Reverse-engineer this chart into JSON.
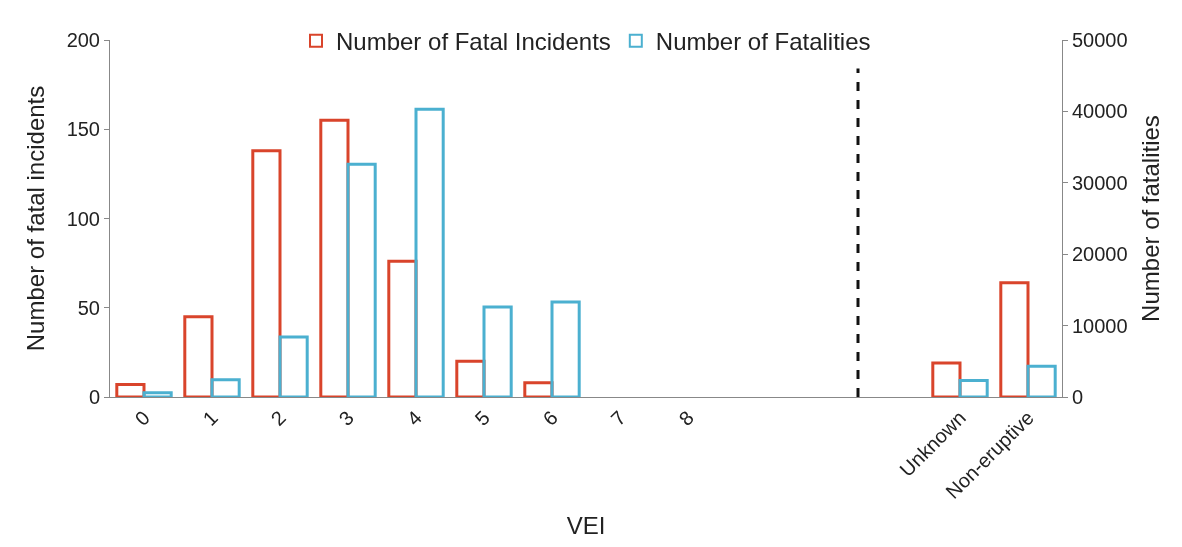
{
  "chart_data": {
    "type": "bar",
    "categories": [
      "0",
      "1",
      "2",
      "3",
      "4",
      "5",
      "6",
      "7",
      "8",
      null,
      null,
      null,
      "Unknown",
      "Non-eruptive"
    ],
    "series": [
      {
        "name": "Number of Fatal Incidents",
        "color": "#d9442b",
        "values": [
          7,
          45,
          138,
          155,
          76,
          20,
          8,
          null,
          null,
          null,
          null,
          null,
          19,
          64
        ]
      },
      {
        "name": "Number of Fatalities",
        "color": "#4bb0d0",
        "axis": "y2",
        "values": [
          600,
          2400,
          8400,
          32600,
          40300,
          12600,
          13300,
          null,
          null,
          null,
          null,
          null,
          2300,
          4300
        ]
      }
    ],
    "xlabel": "VEI",
    "ylabel": "Number of fatal incidents",
    "y2label": "Number of fatalities",
    "ylim": [
      0,
      200
    ],
    "yticks": [
      0,
      50,
      100,
      150,
      200
    ],
    "y2lim": [
      0,
      50000
    ],
    "y2ticks": [
      0,
      10000,
      20000,
      30000,
      40000,
      50000
    ],
    "legend": "top"
  }
}
